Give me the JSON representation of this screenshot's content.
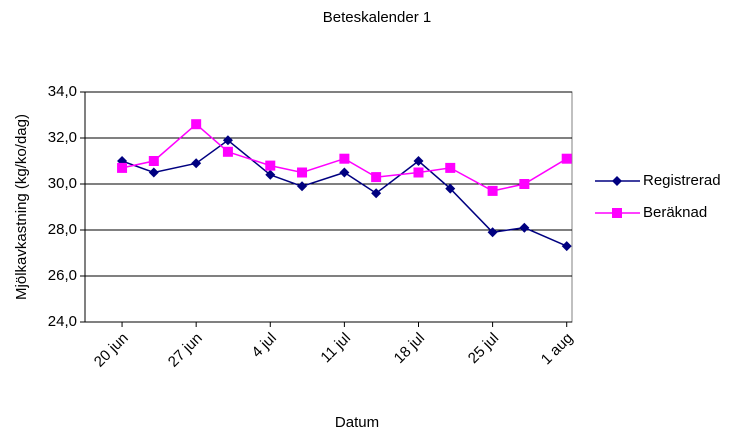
{
  "chart_data": {
    "type": "line",
    "title": "Beteskalender 1",
    "xlabel": "Datum",
    "ylabel": "Mjölkavkastning (kg/ko/dag)",
    "x": [
      171,
      174,
      178,
      181,
      185,
      188,
      192,
      195,
      199,
      202,
      206,
      209,
      213
    ],
    "xlim": [
      167.5,
      213.5
    ],
    "xticks": [
      {
        "value": 171,
        "label": "20 jun"
      },
      {
        "value": 178,
        "label": "27 jun"
      },
      {
        "value": 185,
        "label": "4 jul"
      },
      {
        "value": 192,
        "label": "11 jul"
      },
      {
        "value": 199,
        "label": "18 jul"
      },
      {
        "value": 206,
        "label": "25 jul"
      },
      {
        "value": 213,
        "label": "1 aug"
      }
    ],
    "ylim": [
      24,
      34
    ],
    "yticks": [
      {
        "value": 24,
        "label": "24,0"
      },
      {
        "value": 26,
        "label": "26,0"
      },
      {
        "value": 28,
        "label": "28,0"
      },
      {
        "value": 30,
        "label": "30,0"
      },
      {
        "value": 32,
        "label": "32,0"
      },
      {
        "value": 34,
        "label": "34,0"
      }
    ],
    "grid": true,
    "legend": "right",
    "series": [
      {
        "name": "Registrerad",
        "color": "#000080",
        "marker": "diamond",
        "values": [
          31.0,
          30.5,
          30.9,
          31.9,
          30.4,
          29.9,
          30.5,
          29.6,
          31.0,
          29.8,
          27.9,
          28.1,
          27.3
        ]
      },
      {
        "name": "Beräknad",
        "color": "#ff00ff",
        "marker": "square",
        "values": [
          30.7,
          31.0,
          32.6,
          31.4,
          30.8,
          30.5,
          31.1,
          30.3,
          30.5,
          30.7,
          29.7,
          30.0,
          31.1
        ]
      }
    ]
  }
}
